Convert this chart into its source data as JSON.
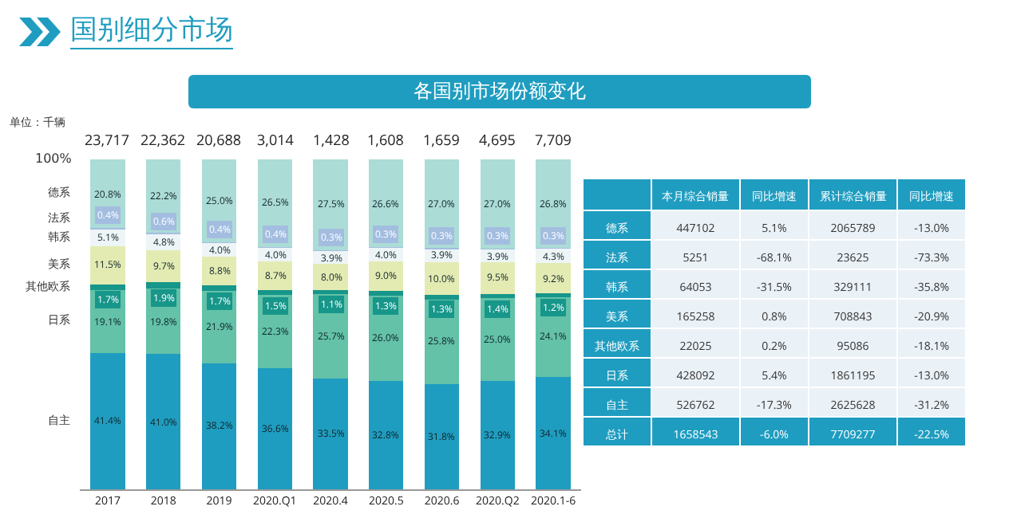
{
  "chart_data": [
    {
      "type": "bar",
      "title": "国别细分市场",
      "subtitle": "各国别市场份额变化",
      "stacked": true,
      "categories": [
        "2017",
        "2018",
        "2019",
        "2020.Q1",
        "2020.4",
        "2020.5",
        "2020.6",
        "2020.Q2",
        "2020.1-6"
      ],
      "ylim": [
        0,
        100
      ],
      "tick_labels": "x",
      "legend": "left",
      "annotations": [
        "单位：千辆",
        "100%",
        {
          "text": "23,717",
          "x": "2017",
          "y": 100
        },
        {
          "text": "22,362",
          "x": "2018",
          "y": 100
        },
        {
          "text": "20,688",
          "x": "2019",
          "y": 100
        },
        {
          "text": "3,014",
          "x": "2020.Q1",
          "y": 100
        },
        {
          "text": "1,428",
          "x": "2020.4",
          "y": 100
        },
        {
          "text": "1,608",
          "x": "2020.5",
          "y": 100
        },
        {
          "text": "1,659",
          "x": "2020.6",
          "y": 100
        },
        {
          "text": "4,695",
          "x": "2020.Q2",
          "y": 100
        },
        {
          "text": "7,709",
          "x": "2020.1-6",
          "y": 100
        }
      ],
      "series": [
        {
          "name": "自主",
          "color": "#1f9dc0",
          "values": [
            41.4,
            41.0,
            38.2,
            36.6,
            33.5,
            32.8,
            31.8,
            32.9,
            34.1
          ],
          "value_labels": [
            "41.4%",
            "41.0%",
            "38.2%",
            "36.6%",
            "33.5%",
            "32.8%",
            "31.8%",
            "32.9%",
            "34.1%"
          ]
        },
        {
          "name": "日系",
          "color": "#63c2a8",
          "values": [
            19.1,
            19.8,
            21.9,
            22.3,
            25.7,
            26.0,
            25.8,
            25.0,
            24.1
          ],
          "value_labels": [
            "19.1%",
            "19.8%",
            "21.9%",
            "22.3%",
            "25.7%",
            "26.0%",
            "25.8%",
            "25.0%",
            "24.1%"
          ]
        },
        {
          "name": "其他欧系",
          "color": "#17968a",
          "values": [
            1.7,
            1.9,
            1.7,
            1.5,
            1.1,
            1.3,
            1.3,
            1.4,
            1.2
          ],
          "value_labels": [
            "1.7%",
            "1.9%",
            "1.7%",
            "1.5%",
            "1.1%",
            "1.3%",
            "1.3%",
            "1.4%",
            "1.2%"
          ]
        },
        {
          "name": "美系",
          "color": "#e3ebb3",
          "values": [
            11.5,
            9.7,
            8.8,
            8.7,
            8.0,
            9.0,
            10.0,
            9.5,
            9.2
          ],
          "value_labels": [
            "11.5%",
            "9.7%",
            "8.8%",
            "8.7%",
            "8.0%",
            "9.0%",
            "10.0%",
            "9.5%",
            "9.2%"
          ]
        },
        {
          "name": "韩系",
          "color": "#eef5f7",
          "values": [
            5.1,
            4.8,
            4.0,
            4.0,
            3.9,
            4.0,
            3.9,
            3.9,
            4.3
          ],
          "value_labels": [
            "5.1%",
            "4.8%",
            "4.0%",
            "4.0%",
            "3.9%",
            "4.0%",
            "3.9%",
            "3.9%",
            "4.3%"
          ]
        },
        {
          "name": "法系",
          "color": "#a3bde0",
          "values": [
            0.4,
            0.6,
            0.4,
            0.4,
            0.3,
            0.3,
            0.3,
            0.3,
            0.3
          ],
          "value_labels": [
            "0.4%",
            "0.6%",
            "0.4%",
            "0.4%",
            "0.3%",
            "0.3%",
            "0.3%",
            "0.3%",
            "0.3%"
          ]
        },
        {
          "name": "德系",
          "color": "#acdcd6",
          "values": [
            20.8,
            22.2,
            25.0,
            26.5,
            27.5,
            26.6,
            27.0,
            27.0,
            26.8
          ],
          "value_labels": [
            "20.8%",
            "22.2%",
            "25.0%",
            "26.5%",
            "27.5%",
            "26.6%",
            "27.0%",
            "27.0%",
            "26.8%"
          ]
        }
      ]
    },
    {
      "type": "other",
      "categories": [
        "德系",
        "法系",
        "韩系",
        "美系",
        "其他欧系",
        "日系",
        "自主",
        "总计"
      ],
      "series": [
        {
          "name": "本月综合销量",
          "colors": [
            "#eaf1f7",
            "#eaf1f7",
            "#eaf1f7",
            "#eaf1f7",
            "#eaf1f7",
            "#eaf1f7",
            "#eaf1f7",
            "#1f9dc0"
          ],
          "values": [
            447102,
            5251,
            64053,
            165258,
            22025,
            428092,
            526762,
            1658543
          ],
          "value_labels": [
            "447102",
            "5251",
            "64053",
            "165258",
            "22025",
            "428092",
            "526762",
            "1658543"
          ]
        },
        {
          "name": "同比增速",
          "colors": [
            "#eaf1f7",
            "#eaf1f7",
            "#eaf1f7",
            "#eaf1f7",
            "#eaf1f7",
            "#eaf1f7",
            "#eaf1f7",
            "#1f9dc0"
          ],
          "values": [
            5.1,
            -68.1,
            -31.5,
            0.8,
            0.2,
            5.4,
            -17.3,
            -6.0
          ],
          "value_labels": [
            "5.1%",
            "-68.1%",
            "-31.5%",
            "0.8%",
            "0.2%",
            "5.4%",
            "-17.3%",
            "-6.0%"
          ]
        },
        {
          "name": "累计综合销量",
          "colors": [
            "#eaf1f7",
            "#eaf1f7",
            "#eaf1f7",
            "#eaf1f7",
            "#eaf1f7",
            "#eaf1f7",
            "#eaf1f7",
            "#1f9dc0"
          ],
          "values": [
            2065789,
            23625,
            329111,
            708843,
            95086,
            1861195,
            2625628,
            7709277
          ],
          "value_labels": [
            "2065789",
            "23625",
            "329111",
            "708843",
            "95086",
            "1861195",
            "2625628",
            "7709277"
          ]
        },
        {
          "name": "同比增速",
          "colors": [
            "#eaf1f7",
            "#eaf1f7",
            "#eaf1f7",
            "#eaf1f7",
            "#eaf1f7",
            "#eaf1f7",
            "#eaf1f7",
            "#1f9dc0"
          ],
          "values": [
            -13.0,
            -73.3,
            -35.8,
            -20.9,
            -18.1,
            -13.0,
            -31.2,
            -22.5
          ],
          "value_labels": [
            "-13.0%",
            "-73.3%",
            "-35.8%",
            "-20.9%",
            "-18.1%",
            "-13.0%",
            "-31.2%",
            "-22.5%"
          ]
        }
      ]
    }
  ]
}
